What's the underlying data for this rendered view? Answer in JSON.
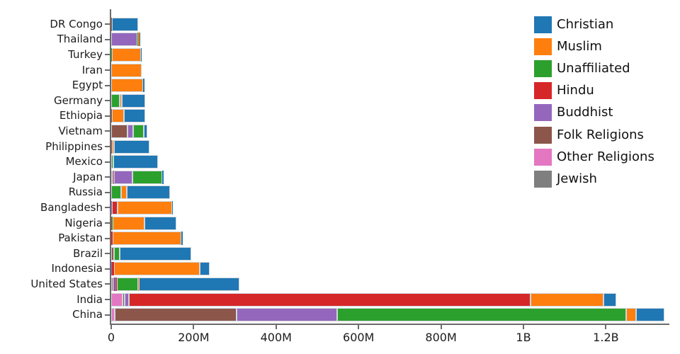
{
  "chart_data": {
    "type": "bar",
    "orientation": "horizontal",
    "stacked": true,
    "title": "",
    "xlabel": "",
    "ylabel": "",
    "values_unit": "millions of people",
    "grid": false,
    "legend_position": "top-right",
    "xlim": [
      0,
      1360
    ],
    "x_ticks": {
      "labels": [
        "0",
        "200M",
        "400M",
        "600M",
        "800M",
        "1B",
        "1.2B"
      ],
      "values": [
        0,
        200,
        400,
        600,
        800,
        1000,
        1200
      ]
    },
    "legend": [
      {
        "label": "Christian",
        "color": "#1f77b4"
      },
      {
        "label": "Muslim",
        "color": "#ff7f0e"
      },
      {
        "label": "Unaffiliated",
        "color": "#2ca02c"
      },
      {
        "label": "Hindu",
        "color": "#d62728"
      },
      {
        "label": "Buddhist",
        "color": "#9467bd"
      },
      {
        "label": "Folk Religions",
        "color": "#8c564b"
      },
      {
        "label": "Other Religions",
        "color": "#e377c2"
      },
      {
        "label": "Jewish",
        "color": "#7f7f7f"
      }
    ],
    "categories_top_to_bottom": [
      "DR Congo",
      "Thailand",
      "Turkey",
      "Iran",
      "Egypt",
      "Germany",
      "Ethiopia",
      "Vietnam",
      "Philippines",
      "Mexico",
      "Japan",
      "Russia",
      "Bangladesh",
      "Nigeria",
      "Pakistan",
      "Brazil",
      "Indonesia",
      "United States",
      "India",
      "China"
    ],
    "rows": [
      {
        "country": "DR Congo",
        "segments": [
          {
            "religion": "Folk Religions",
            "value_m": 1.2
          },
          {
            "religion": "Muslim",
            "value_m": 1.0
          },
          {
            "religion": "Christian",
            "value_m": 63.2
          }
        ]
      },
      {
        "country": "Thailand",
        "segments": [
          {
            "religion": "Buddhist",
            "value_m": 64.4
          },
          {
            "religion": "Unaffiliated",
            "value_m": 0.2
          },
          {
            "religion": "Muslim",
            "value_m": 3.8
          },
          {
            "religion": "Christian",
            "value_m": 0.6
          }
        ]
      },
      {
        "country": "Turkey",
        "segments": [
          {
            "religion": "Unaffiliated",
            "value_m": 0.9
          },
          {
            "religion": "Muslim",
            "value_m": 71.3
          },
          {
            "religion": "Christian",
            "value_m": 0.3
          }
        ]
      },
      {
        "country": "Iran",
        "segments": [
          {
            "religion": "Other Religions",
            "value_m": 0.2
          },
          {
            "religion": "Muslim",
            "value_m": 73.6
          },
          {
            "religion": "Christian",
            "value_m": 0.1
          }
        ]
      },
      {
        "country": "Egypt",
        "segments": [
          {
            "religion": "Muslim",
            "value_m": 77.0
          },
          {
            "religion": "Christian",
            "value_m": 4.1
          }
        ]
      },
      {
        "country": "Germany",
        "segments": [
          {
            "religion": "Jewish",
            "value_m": 0.2
          },
          {
            "religion": "Buddhist",
            "value_m": 0.2
          },
          {
            "religion": "Unaffiliated",
            "value_m": 20.3
          },
          {
            "religion": "Muslim",
            "value_m": 4.8
          },
          {
            "religion": "Christian",
            "value_m": 56.5
          }
        ]
      },
      {
        "country": "Ethiopia",
        "segments": [
          {
            "religion": "Folk Religions",
            "value_m": 2.2
          },
          {
            "religion": "Muslim",
            "value_m": 28.7
          },
          {
            "religion": "Christian",
            "value_m": 52.1
          }
        ]
      },
      {
        "country": "Vietnam",
        "segments": [
          {
            "religion": "Other Religions",
            "value_m": 0.4
          },
          {
            "religion": "Folk Religions",
            "value_m": 39.4
          },
          {
            "religion": "Buddhist",
            "value_m": 14.3
          },
          {
            "religion": "Unaffiliated",
            "value_m": 25.7
          },
          {
            "religion": "Christian",
            "value_m": 7.1
          }
        ]
      },
      {
        "country": "Philippines",
        "segments": [
          {
            "religion": "Folk Religions",
            "value_m": 1.4
          },
          {
            "religion": "Muslim",
            "value_m": 5.1
          },
          {
            "religion": "Christian",
            "value_m": 86.4
          }
        ]
      },
      {
        "country": "Mexico",
        "segments": [
          {
            "religion": "Other Religions",
            "value_m": 0.1
          },
          {
            "religion": "Unaffiliated",
            "value_m": 5.3
          },
          {
            "religion": "Christian",
            "value_m": 107.8
          }
        ]
      },
      {
        "country": "Japan",
        "segments": [
          {
            "religion": "Other Religions",
            "value_m": 6.0
          },
          {
            "religion": "Folk Religions",
            "value_m": 0.5
          },
          {
            "religion": "Buddhist",
            "value_m": 45.8
          },
          {
            "religion": "Unaffiliated",
            "value_m": 72.1
          },
          {
            "religion": "Christian",
            "value_m": 2.0
          }
        ]
      },
      {
        "country": "Russia",
        "segments": [
          {
            "religion": "Jewish",
            "value_m": 0.2
          },
          {
            "religion": "Buddhist",
            "value_m": 0.1
          },
          {
            "religion": "Unaffiliated",
            "value_m": 23.2
          },
          {
            "religion": "Muslim",
            "value_m": 14.3
          },
          {
            "religion": "Christian",
            "value_m": 104.8
          }
        ]
      },
      {
        "country": "Bangladesh",
        "segments": [
          {
            "religion": "Folk Religions",
            "value_m": 0.6
          },
          {
            "religion": "Buddhist",
            "value_m": 0.7
          },
          {
            "religion": "Hindu",
            "value_m": 13.5
          },
          {
            "religion": "Muslim",
            "value_m": 133.5
          },
          {
            "religion": "Christian",
            "value_m": 0.3
          }
        ]
      },
      {
        "country": "Nigeria",
        "segments": [
          {
            "religion": "Folk Religions",
            "value_m": 2.2
          },
          {
            "religion": "Unaffiliated",
            "value_m": 0.6
          },
          {
            "religion": "Muslim",
            "value_m": 77.3
          },
          {
            "religion": "Christian",
            "value_m": 78.1
          }
        ]
      },
      {
        "country": "Pakistan",
        "segments": [
          {
            "religion": "Hindu",
            "value_m": 3.3
          },
          {
            "religion": "Muslim",
            "value_m": 167.4
          },
          {
            "religion": "Christian",
            "value_m": 2.8
          }
        ]
      },
      {
        "country": "Brazil",
        "segments": [
          {
            "religion": "Other Religions",
            "value_m": 0.6
          },
          {
            "religion": "Folk Religions",
            "value_m": 5.5
          },
          {
            "religion": "Unaffiliated",
            "value_m": 15.4
          },
          {
            "religion": "Christian",
            "value_m": 173.3
          }
        ]
      },
      {
        "country": "Indonesia",
        "segments": [
          {
            "religion": "Folk Religions",
            "value_m": 0.7
          },
          {
            "religion": "Buddhist",
            "value_m": 1.7
          },
          {
            "religion": "Hindu",
            "value_m": 4.1
          },
          {
            "religion": "Muslim",
            "value_m": 209.1
          },
          {
            "religion": "Christian",
            "value_m": 23.7
          }
        ]
      },
      {
        "country": "United States",
        "segments": [
          {
            "religion": "Jewish",
            "value_m": 5.6
          },
          {
            "religion": "Other Religions",
            "value_m": 1.9
          },
          {
            "religion": "Folk Religions",
            "value_m": 0.6
          },
          {
            "religion": "Buddhist",
            "value_m": 3.7
          },
          {
            "religion": "Hindu",
            "value_m": 1.9
          },
          {
            "religion": "Unaffiliated",
            "value_m": 50.9
          },
          {
            "religion": "Muslim",
            "value_m": 2.8
          },
          {
            "religion": "Christian",
            "value_m": 243.1
          }
        ]
      },
      {
        "country": "India",
        "segments": [
          {
            "religion": "Other Religions",
            "value_m": 27.6
          },
          {
            "religion": "Folk Religions",
            "value_m": 5.8
          },
          {
            "religion": "Buddhist",
            "value_m": 9.3
          },
          {
            "religion": "Hindu",
            "value_m": 973.8
          },
          {
            "religion": "Unaffiliated",
            "value_m": 0.9
          },
          {
            "religion": "Muslim",
            "value_m": 176.2
          },
          {
            "religion": "Christian",
            "value_m": 31.1
          }
        ]
      },
      {
        "country": "China",
        "segments": [
          {
            "religion": "Other Religions",
            "value_m": 9.4
          },
          {
            "religion": "Folk Religions",
            "value_m": 294.3
          },
          {
            "religion": "Buddhist",
            "value_m": 244.1
          },
          {
            "religion": "Unaffiliated",
            "value_m": 700.7
          },
          {
            "religion": "Muslim",
            "value_m": 24.7
          },
          {
            "religion": "Christian",
            "value_m": 68.4
          }
        ]
      }
    ]
  },
  "style": {
    "segment_edge_color": "#cfd6dc",
    "axis_color": "#6b6b6b",
    "label_color": "#1c1c1c"
  }
}
